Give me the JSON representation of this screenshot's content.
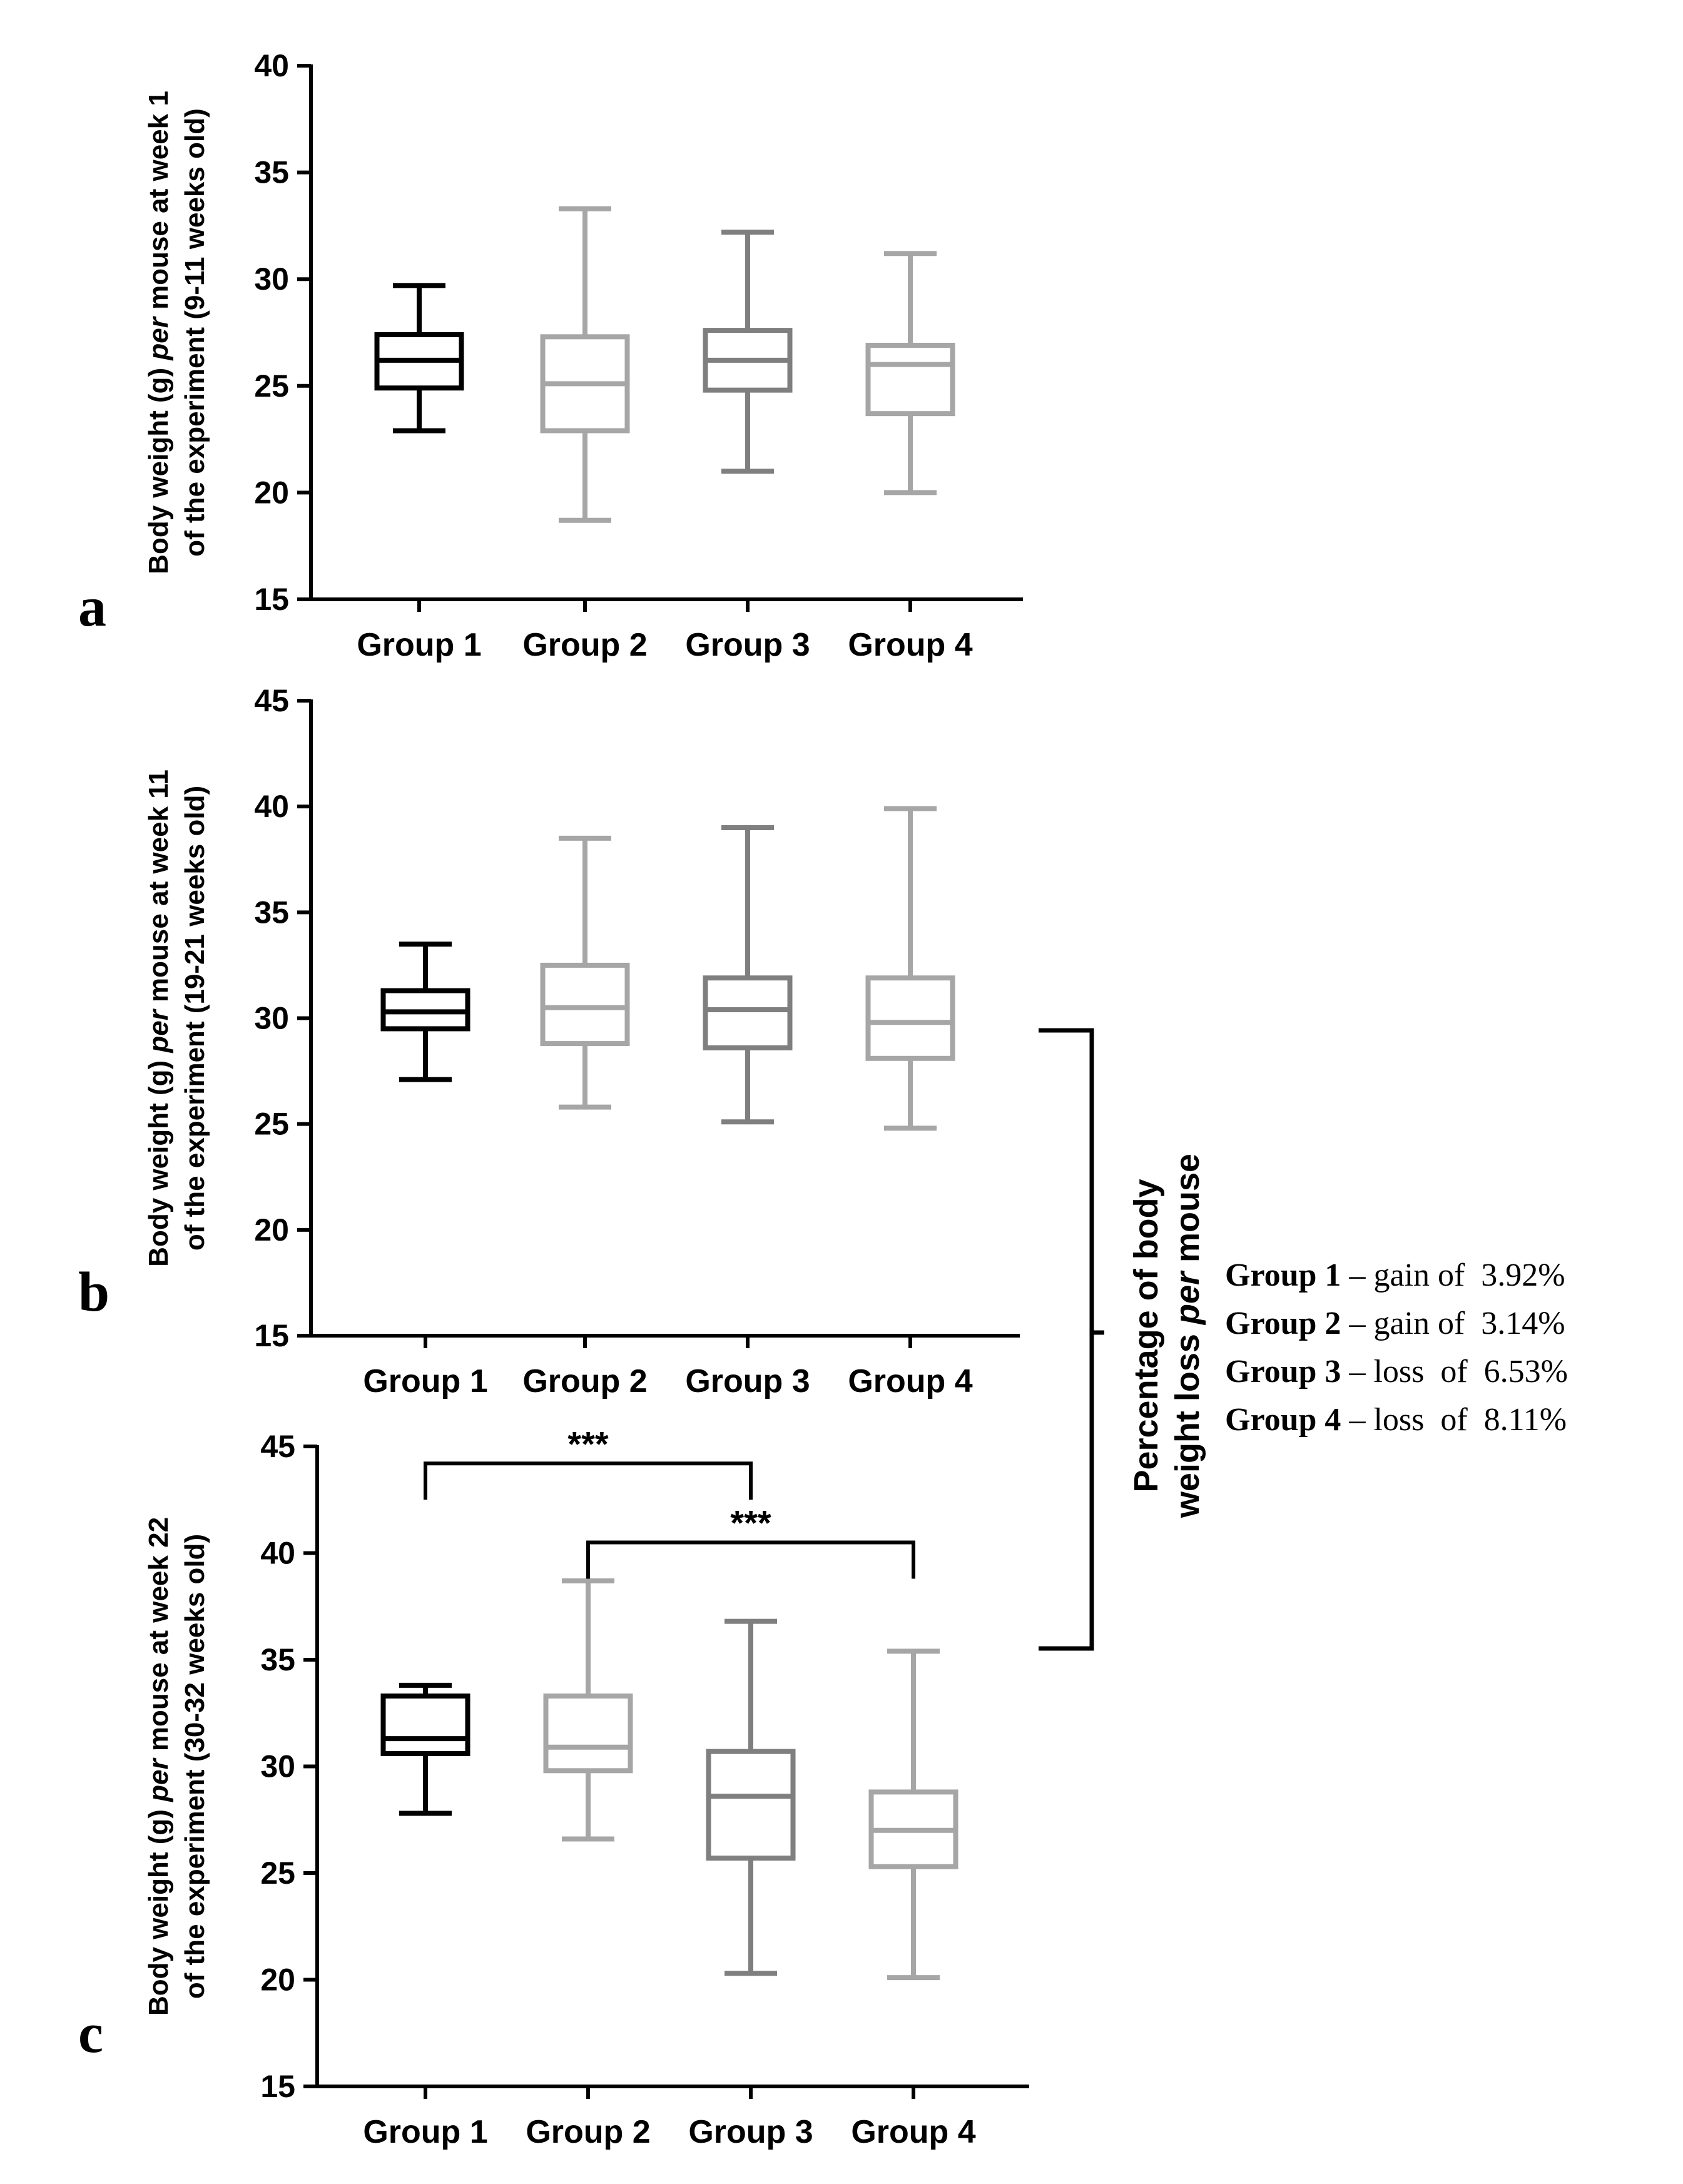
{
  "chart_data": [
    {
      "type": "boxplot",
      "panel": "a",
      "ylabel_line1": "Body weight (g) ",
      "ylabel_italic": "per",
      "ylabel_line1_rest": " mouse at week 1",
      "ylabel_line2": "of the experiment (9-11 weeks old)",
      "ylim": [
        15,
        40
      ],
      "yticks": [
        15,
        20,
        25,
        30,
        35,
        40
      ],
      "categories": [
        "Group 1",
        "Group 2",
        "Group 3",
        "Group 4"
      ],
      "boxes": [
        {
          "min": 22.9,
          "q1": 24.9,
          "median": 26.2,
          "q3": 27.4,
          "max": 29.7
        },
        {
          "min": 18.7,
          "q1": 22.9,
          "median": 25.1,
          "q3": 27.3,
          "max": 33.3
        },
        {
          "min": 21.0,
          "q1": 24.8,
          "median": 26.2,
          "q3": 27.6,
          "max": 32.2
        },
        {
          "min": 20.0,
          "q1": 23.7,
          "median": 26.0,
          "q3": 26.9,
          "max": 31.2
        }
      ],
      "colors": [
        "#000000",
        "#a6a6a6",
        "#7f7f7f",
        "#a6a6a6"
      ],
      "significance": []
    },
    {
      "type": "boxplot",
      "panel": "b",
      "ylabel_line1": "Body weight (g) ",
      "ylabel_italic": "per",
      "ylabel_line1_rest": " mouse at week 11",
      "ylabel_line2": "of the experiment (19-21 weeks old)",
      "ylim": [
        15,
        45
      ],
      "yticks": [
        15,
        20,
        25,
        30,
        35,
        40,
        45
      ],
      "categories": [
        "Group 1",
        "Group 2",
        "Group 3",
        "Group 4"
      ],
      "boxes": [
        {
          "min": 27.1,
          "q1": 29.5,
          "median": 30.3,
          "q3": 31.3,
          "max": 33.5
        },
        {
          "min": 25.8,
          "q1": 28.8,
          "median": 30.5,
          "q3": 32.5,
          "max": 38.5
        },
        {
          "min": 25.1,
          "q1": 28.6,
          "median": 30.4,
          "q3": 31.9,
          "max": 39.0
        },
        {
          "min": 24.8,
          "q1": 28.1,
          "median": 29.8,
          "q3": 31.9,
          "max": 39.9
        }
      ],
      "colors": [
        "#000000",
        "#a6a6a6",
        "#7f7f7f",
        "#a6a6a6"
      ],
      "significance": []
    },
    {
      "type": "boxplot",
      "panel": "c",
      "ylabel_line1": "Body weight (g) ",
      "ylabel_italic": "per",
      "ylabel_line1_rest": " mouse at week 22",
      "ylabel_line2": "of the experiment (30-32 weeks old)",
      "ylim": [
        15,
        45
      ],
      "yticks": [
        15,
        20,
        25,
        30,
        35,
        40,
        45
      ],
      "categories": [
        "Group 1",
        "Group 2",
        "Group 3",
        "Group 4"
      ],
      "boxes": [
        {
          "min": 27.8,
          "q1": 30.6,
          "median": 31.3,
          "q3": 33.3,
          "max": 33.8
        },
        {
          "min": 26.6,
          "q1": 29.8,
          "median": 30.9,
          "q3": 33.3,
          "max": 38.7
        },
        {
          "min": 20.3,
          "q1": 25.7,
          "median": 28.6,
          "q3": 30.7,
          "max": 36.8
        },
        {
          "min": 20.1,
          "q1": 25.3,
          "median": 27.0,
          "q3": 28.8,
          "max": 35.4
        }
      ],
      "colors": [
        "#000000",
        "#a6a6a6",
        "#7f7f7f",
        "#a6a6a6"
      ],
      "significance": [
        {
          "from": 0,
          "to": 2,
          "label": "***",
          "level": 44.2
        },
        {
          "from": 1,
          "to": 3,
          "label": "***",
          "level": 40.5
        }
      ]
    }
  ],
  "side_annotation": {
    "title_line1": "Percentage of body",
    "title_line2_a": "weight loss ",
    "title_line2_italic": "per",
    "title_line2_b": " mouse",
    "items": [
      {
        "group": "Group 1",
        "text": " – gain of  3.92%"
      },
      {
        "group": "Group 2",
        "text": " – gain of  3.14%"
      },
      {
        "group": "Group 3",
        "text": " – loss  of  6.53%"
      },
      {
        "group": "Group 4",
        "text": " – loss  of  8.11%"
      }
    ]
  }
}
